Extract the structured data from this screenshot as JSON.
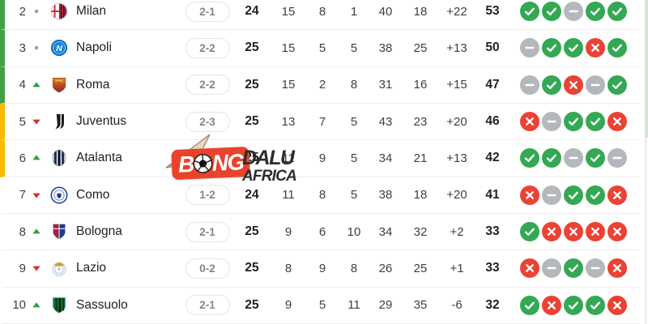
{
  "page": {
    "background": "#ffffff"
  },
  "legend_colors": {
    "champions_zone": "#43a047",
    "europa_zone": "#fbbc04",
    "win": "#34a853",
    "loss": "#ea4335",
    "draw": "#b4b8bc",
    "rank_up": "#2f9e44",
    "rank_down": "#d93025",
    "rank_same": "#9aa0a6"
  },
  "watermark": {
    "part_b": "B",
    "part_ng": "NG",
    "part_dalu": "DALU",
    "part_africa": "AFRICA",
    "badge_color": "#e8432d"
  },
  "standings": {
    "rows": [
      {
        "position": "2",
        "trend": "same",
        "team": "Milan",
        "logo": "milan-logo",
        "last_match": "2-1",
        "played": "24",
        "wins": "15",
        "draws": "8",
        "losses": "1",
        "goals_for": "40",
        "goals_against": "18",
        "goal_diff": "+22",
        "points": "53",
        "form": [
          "W",
          "W",
          "D",
          "W",
          "W"
        ],
        "zone": "top"
      },
      {
        "position": "3",
        "trend": "same",
        "team": "Napoli",
        "logo": "napoli-logo",
        "last_match": "2-2",
        "played": "25",
        "wins": "15",
        "draws": "5",
        "losses": "5",
        "goals_for": "38",
        "goals_against": "25",
        "goal_diff": "+13",
        "points": "50",
        "form": [
          "D",
          "W",
          "W",
          "L",
          "W"
        ],
        "zone": "top"
      },
      {
        "position": "4",
        "trend": "up",
        "team": "Roma",
        "logo": "roma-logo",
        "last_match": "2-2",
        "played": "25",
        "wins": "15",
        "draws": "2",
        "losses": "8",
        "goals_for": "31",
        "goals_against": "16",
        "goal_diff": "+15",
        "points": "47",
        "form": [
          "D",
          "W",
          "L",
          "D",
          "W"
        ],
        "zone": "top"
      },
      {
        "position": "5",
        "trend": "down",
        "team": "Juventus",
        "logo": "juventus-logo",
        "last_match": "2-3",
        "played": "25",
        "wins": "13",
        "draws": "7",
        "losses": "5",
        "goals_for": "43",
        "goals_against": "23",
        "goal_diff": "+20",
        "points": "46",
        "form": [
          "L",
          "D",
          "W",
          "W",
          "L"
        ],
        "zone": "mid"
      },
      {
        "position": "6",
        "trend": "up",
        "team": "Atalanta",
        "logo": "atalanta-logo",
        "last_match": null,
        "played": "25",
        "wins": "11",
        "draws": "9",
        "losses": "5",
        "goals_for": "34",
        "goals_against": "21",
        "goal_diff": "+13",
        "points": "42",
        "form": [
          "W",
          "W",
          "D",
          "W",
          "D"
        ],
        "zone": "mid"
      },
      {
        "position": "7",
        "trend": "down",
        "team": "Como",
        "logo": "como-logo",
        "last_match": "1-2",
        "played": "24",
        "wins": "11",
        "draws": "8",
        "losses": "5",
        "goals_for": "38",
        "goals_against": "18",
        "goal_diff": "+20",
        "points": "41",
        "form": [
          "L",
          "D",
          "W",
          "W",
          "L"
        ],
        "zone": null
      },
      {
        "position": "8",
        "trend": "up",
        "team": "Bologna",
        "logo": "bologna-logo",
        "last_match": "2-1",
        "played": "25",
        "wins": "9",
        "draws": "6",
        "losses": "10",
        "goals_for": "34",
        "goals_against": "32",
        "goal_diff": "+2",
        "points": "33",
        "form": [
          "W",
          "L",
          "L",
          "L",
          "L"
        ],
        "zone": null
      },
      {
        "position": "9",
        "trend": "down",
        "team": "Lazio",
        "logo": "lazio-logo",
        "last_match": "0-2",
        "played": "25",
        "wins": "8",
        "draws": "9",
        "losses": "8",
        "goals_for": "26",
        "goals_against": "25",
        "goal_diff": "+1",
        "points": "33",
        "form": [
          "L",
          "D",
          "W",
          "D",
          "L"
        ],
        "zone": null
      },
      {
        "position": "10",
        "trend": "up",
        "team": "Sassuolo",
        "logo": "sassuolo-logo",
        "last_match": "2-1",
        "played": "25",
        "wins": "9",
        "draws": "5",
        "losses": "11",
        "goals_for": "29",
        "goals_against": "35",
        "goal_diff": "-6",
        "points": "32",
        "form": [
          "W",
          "L",
          "W",
          "W",
          "L"
        ],
        "zone": null
      }
    ]
  }
}
